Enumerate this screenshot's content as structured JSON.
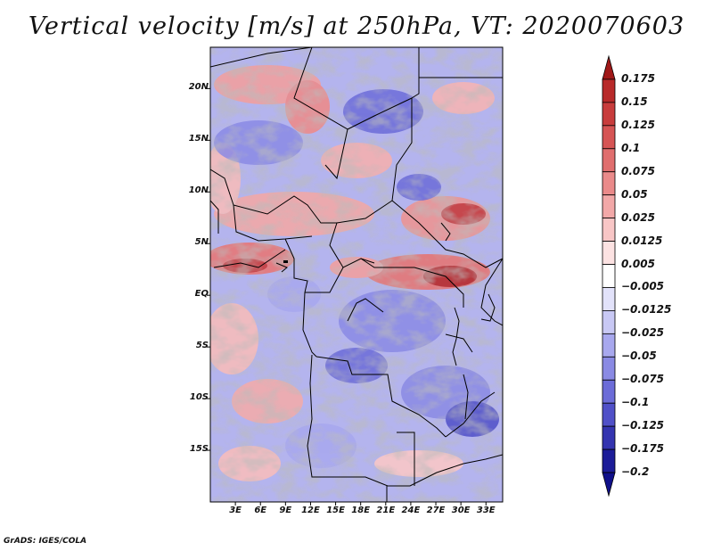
{
  "title": "Vertical velocity [m/s] at 250hPa, VT: 2020070603",
  "map": {
    "lat_ticks": [
      "20N",
      "15N",
      "10N",
      "5N",
      "EQ",
      "5S",
      "10S",
      "15S"
    ],
    "lat_values": [
      20,
      15,
      10,
      5,
      0,
      -5,
      -10,
      -15
    ],
    "lon_ticks": [
      "3E",
      "6E",
      "9E",
      "12E",
      "15E",
      "18E",
      "21E",
      "24E",
      "27E",
      "30E",
      "33E"
    ],
    "lon_values": [
      3,
      6,
      9,
      12,
      15,
      18,
      21,
      24,
      27,
      30,
      33
    ],
    "lon_range": [
      0,
      35
    ],
    "lat_range": [
      -20,
      24
    ]
  },
  "colorbar": {
    "labels": [
      "0.175",
      "0.15",
      "0.125",
      "0.1",
      "0.075",
      "0.05",
      "0.025",
      "0.0125",
      "0.005",
      "−0.005",
      "−0.0125",
      "−0.025",
      "−0.05",
      "−0.075",
      "−0.1",
      "−0.125",
      "−0.175",
      "−0.2"
    ],
    "colors": [
      "#a01818",
      "#b82a2a",
      "#c83c3c",
      "#d65454",
      "#e06e6e",
      "#ea8a8a",
      "#f2a8a8",
      "#f8c6c6",
      "#fce2e2",
      "#ffffff",
      "#e2e2fa",
      "#c8c8f4",
      "#a8a8ee",
      "#8a8ae4",
      "#6c6cd8",
      "#5050c8",
      "#3434b0",
      "#1c1c98",
      "#10108a"
    ]
  },
  "credit": "GrADS: IGES/COLA"
}
